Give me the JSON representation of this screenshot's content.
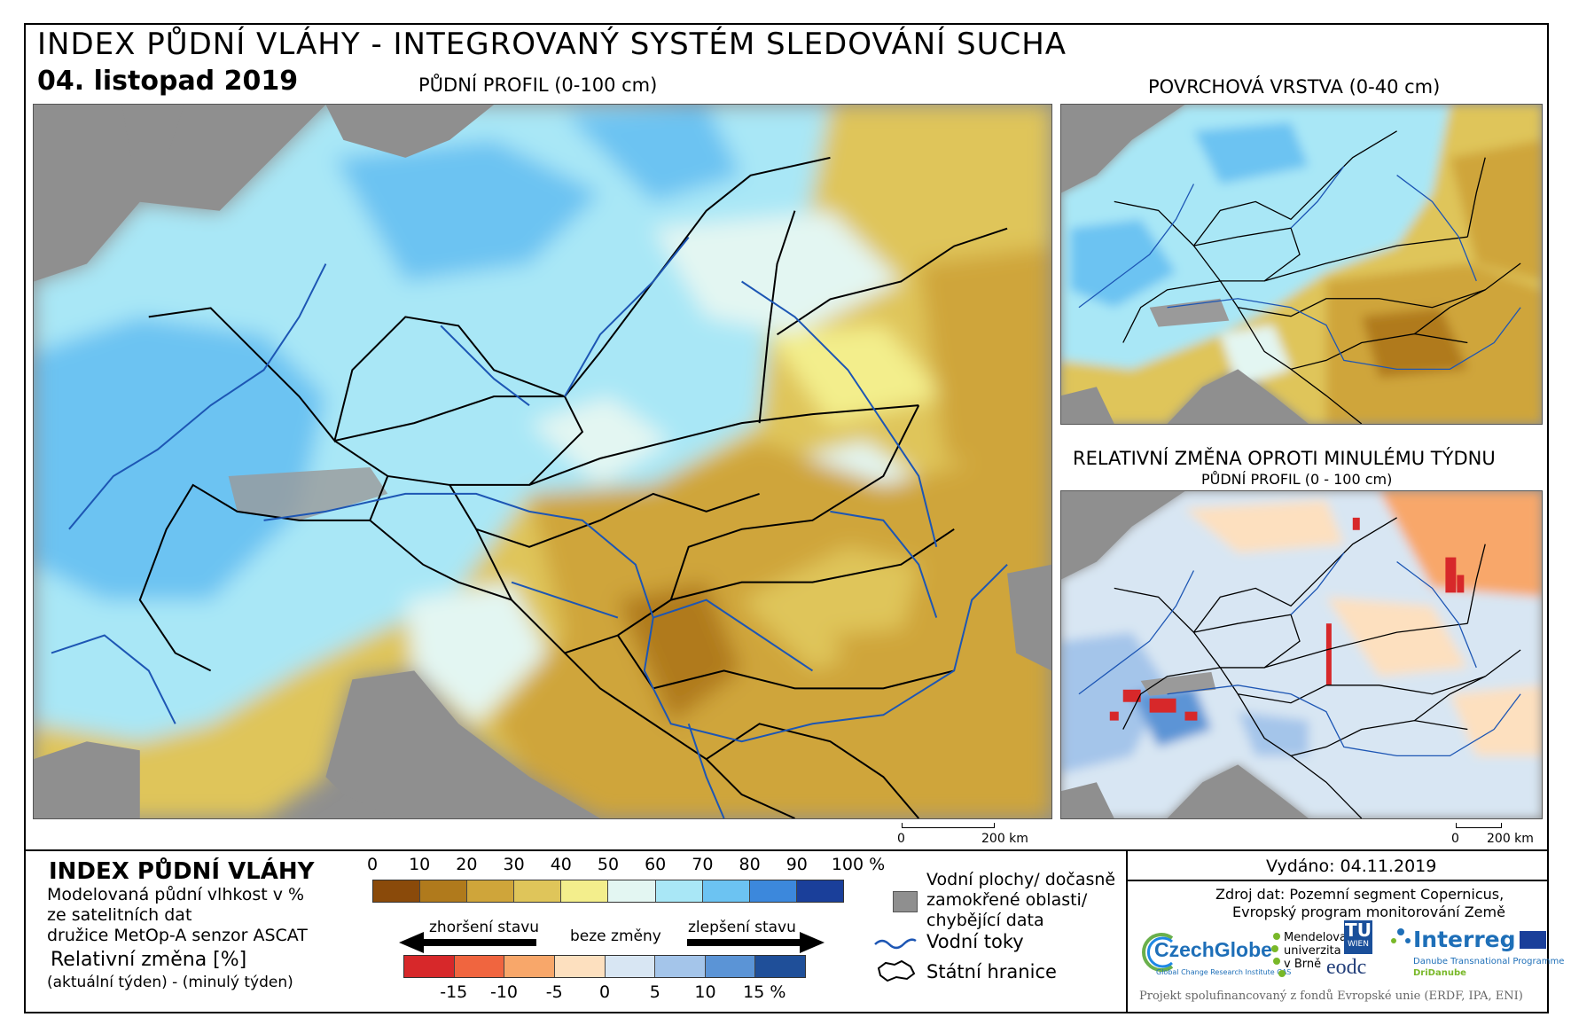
{
  "header": {
    "title": "INDEX PŮDNÍ VLÁHY - INTEGROVANÝ SYSTÉM SLEDOVÁNÍ SUCHA",
    "date": "04. listopad 2019"
  },
  "maps": {
    "main_caption": "PŮDNÍ PROFIL (0-100 cm)",
    "surface_caption": "POVRCHOVÁ VRSTVA (0-40 cm)",
    "change_caption": "RELATIVNÍ ZMĚNA OPROTI MINULÉMU TÝDNU",
    "change_subcaption": "PŮDNÍ PROFIL (0 - 100 cm)"
  },
  "scalebar": {
    "zero": "0",
    "distance": "200 km"
  },
  "legend": {
    "heading": "INDEX PŮDNÍ VLÁHY",
    "description_1": "Modelovaná půdní vlhkost v %",
    "description_2": "ze satelitních dat",
    "description_3": "družice MetOp-A senzor ASCAT",
    "change_heading": "Relativní změna [%]",
    "change_formula": "(aktuální týden) - (minulý týden)",
    "index_ticks": [
      "0",
      "10",
      "20",
      "30",
      "40",
      "50",
      "60",
      "70",
      "80",
      "90",
      "100 %"
    ],
    "index_colors": [
      "#8a4a0a",
      "#b07a1c",
      "#cfa53a",
      "#dfc55a",
      "#f3ee8c",
      "#e3f6f2",
      "#a9e7f6",
      "#6cc3f2",
      "#3c88dc",
      "#1a3f9a"
    ],
    "change_ticks": [
      "-15",
      "-10",
      "-5",
      "0",
      "5",
      "10",
      "15 %"
    ],
    "change_colors": [
      "#d7282a",
      "#f0653f",
      "#f8a76a",
      "#fde0bf",
      "#d8e6f3",
      "#a4c5ea",
      "#5b94d6",
      "#1f4f99"
    ],
    "worse_label": "zhoršení stavu",
    "nochange_label": "beze změny",
    "better_label": "zlepšení stavu",
    "water_label_1": "Vodní plochy/ dočasně",
    "water_label_2": "zamokřené oblasti/",
    "water_label_3": "chybějící data",
    "rivers_label": "Vodní toky",
    "borders_label": "Státní hranice"
  },
  "info": {
    "issued": "Vydáno: 04.11.2019",
    "source_1": "Zdroj dat: Pozemní segment Copernicus,",
    "source_2": "Evropský program monitorování Země",
    "footer": "Projekt spolufinancovaný z fondů Evropské unie (ERDF, IPA, ENI)"
  },
  "logos": {
    "czechglobe": "CzechGlobe",
    "czechglobe_sub": "Global Change Research Institute CAS",
    "mendel_1": "Mendelova",
    "mendel_2": "univerzita",
    "mendel_3": "v Brně",
    "tu": "TU",
    "tu_sub": "WIEN",
    "eodc": "eodc",
    "interreg": "Interreg",
    "interreg_sub_1": "Danube Transnational Programme",
    "interreg_sub_2": "DriDanube"
  },
  "colors": {
    "sea": "#8f8f8f",
    "river": "#1d56b4",
    "border": "#000000"
  }
}
